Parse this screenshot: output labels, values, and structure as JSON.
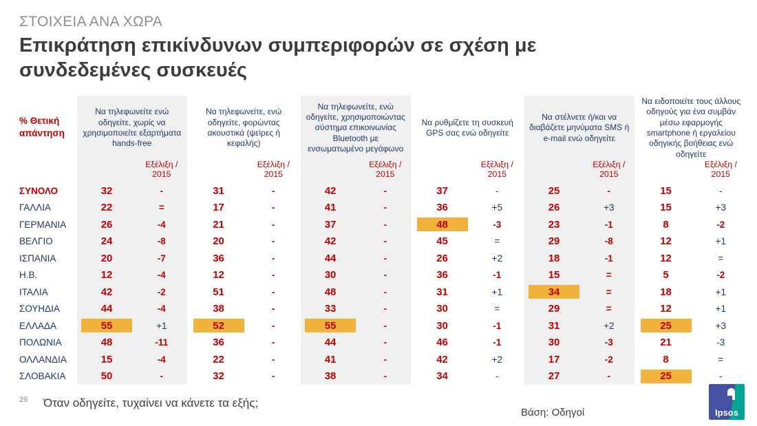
{
  "page": {
    "kicker": "ΣΤΟΙΧΕΙΑ ΑΝΑ ΧΩΡΑ",
    "title": "Επικράτηση επικίνδυνων συμπεριφορών σε σχέση με συνδεδεμένες συσκευές",
    "page_number": "29",
    "footnote": "Όταν οδηγείτε, τυχαίνει να κάνετε τα εξής;",
    "base_note": "Βάση: Οδηγοί",
    "logo_text": "Ipsos"
  },
  "colors": {
    "accent_red": "#C00000",
    "navy": "#1F3864",
    "highlight": "#F2B33C",
    "panel_gray": "#F0F0F0",
    "title_dark": "#3C3C3C",
    "kicker_gray": "#8E8E8E",
    "logo_blue": "#4352A2",
    "logo_teal": "#00A496"
  },
  "table": {
    "measure_label": "% Θετική απάντηση",
    "evolution_label": "Εξέλιξη / 2015",
    "columns": [
      {
        "label": "Να τηλεφωνείτε ενώ οδηγείτε, χωρίς να χρησιμοποιείτε εξαρτήματα hands-free",
        "shaded": true
      },
      {
        "label": "Να τηλεφωνείτε, ενώ οδηγείτε, φορώντας ακουστικά (ψείρες ή κεφαλής)",
        "shaded": false
      },
      {
        "label": "Να τηλεφωνείτε, ενώ οδηγείτε, χρησιμοποιώντας σύστημα επικοινωνίας Bluetooth με ενσωματωμένο μεγάφωνο",
        "shaded": true
      },
      {
        "label": "Να ρυθμίζετε τη συσκευή GPS σας ενώ οδηγείτε",
        "shaded": false
      },
      {
        "label": "Να στέλνετε ή/και να διαβάζετε μηνύματα SMS ή e-mail ενώ οδηγείτε",
        "shaded": true
      },
      {
        "label": "Να ειδοποιείτε τους άλλους οδηγούς για ένα συμβάν μέσω εφαρμογής smartphone ή εργαλείου οδηγικής βοήθειας ενώ οδηγείτε",
        "shaded": false
      }
    ],
    "rows": [
      {
        "label": "ΣΥΝΟΛΟ",
        "is_total": true,
        "cells": [
          {
            "v": "32",
            "e": "-",
            "ec": "r",
            "hl": false
          },
          {
            "v": "31",
            "e": "-",
            "ec": "r",
            "hl": false
          },
          {
            "v": "42",
            "e": "-",
            "ec": "r",
            "hl": false
          },
          {
            "v": "37",
            "e": "-",
            "ec": "n",
            "hl": false
          },
          {
            "v": "25",
            "e": "-",
            "ec": "r",
            "hl": false
          },
          {
            "v": "15",
            "e": "-",
            "ec": "n",
            "hl": false
          }
        ]
      },
      {
        "label": "ΓΑΛΛΙΑ",
        "is_total": false,
        "cells": [
          {
            "v": "22",
            "e": "=",
            "ec": "r",
            "hl": false
          },
          {
            "v": "17",
            "e": "-",
            "ec": "r",
            "hl": false
          },
          {
            "v": "41",
            "e": "-",
            "ec": "r",
            "hl": false
          },
          {
            "v": "36",
            "e": "+5",
            "ec": "n",
            "hl": false
          },
          {
            "v": "26",
            "e": "+3",
            "ec": "n",
            "hl": false
          },
          {
            "v": "15",
            "e": "+3",
            "ec": "n",
            "hl": false
          }
        ]
      },
      {
        "label": "ΓΕΡΜΑΝΙΑ",
        "is_total": false,
        "cells": [
          {
            "v": "26",
            "e": "-4",
            "ec": "r",
            "hl": false
          },
          {
            "v": "21",
            "e": "-",
            "ec": "r",
            "hl": false
          },
          {
            "v": "37",
            "e": "-",
            "ec": "r",
            "hl": false
          },
          {
            "v": "48",
            "e": "-3",
            "ec": "r",
            "hl": true
          },
          {
            "v": "23",
            "e": "-1",
            "ec": "r",
            "hl": false
          },
          {
            "v": "8",
            "e": "-2",
            "ec": "r",
            "hl": false
          }
        ]
      },
      {
        "label": "ΒΕΛΓΙΟ",
        "is_total": false,
        "cells": [
          {
            "v": "24",
            "e": "-8",
            "ec": "r",
            "hl": false
          },
          {
            "v": "20",
            "e": "-",
            "ec": "r",
            "hl": false
          },
          {
            "v": "42",
            "e": "-",
            "ec": "r",
            "hl": false
          },
          {
            "v": "45",
            "e": "=",
            "ec": "n",
            "hl": false
          },
          {
            "v": "29",
            "e": "-8",
            "ec": "r",
            "hl": false
          },
          {
            "v": "12",
            "e": "+1",
            "ec": "n",
            "hl": false
          }
        ]
      },
      {
        "label": "ΙΣΠΑΝΙΑ",
        "is_total": false,
        "cells": [
          {
            "v": "20",
            "e": "-7",
            "ec": "r",
            "hl": false
          },
          {
            "v": "36",
            "e": "-",
            "ec": "r",
            "hl": false
          },
          {
            "v": "44",
            "e": "-",
            "ec": "r",
            "hl": false
          },
          {
            "v": "26",
            "e": "+2",
            "ec": "n",
            "hl": false
          },
          {
            "v": "18",
            "e": "-1",
            "ec": "r",
            "hl": false
          },
          {
            "v": "12",
            "e": "=",
            "ec": "n",
            "hl": false
          }
        ]
      },
      {
        "label": "Η.Β.",
        "is_total": false,
        "cells": [
          {
            "v": "12",
            "e": "-4",
            "ec": "r",
            "hl": false
          },
          {
            "v": "12",
            "e": "-",
            "ec": "r",
            "hl": false
          },
          {
            "v": "30",
            "e": "-",
            "ec": "r",
            "hl": false
          },
          {
            "v": "36",
            "e": "-1",
            "ec": "r",
            "hl": false
          },
          {
            "v": "15",
            "e": "=",
            "ec": "r",
            "hl": false
          },
          {
            "v": "5",
            "e": "-2",
            "ec": "r",
            "hl": false
          }
        ]
      },
      {
        "label": "ΙΤΑΛΙΑ",
        "is_total": false,
        "cells": [
          {
            "v": "42",
            "e": "-2",
            "ec": "r",
            "hl": false
          },
          {
            "v": "51",
            "e": "-",
            "ec": "r",
            "hl": false
          },
          {
            "v": "48",
            "e": "-",
            "ec": "r",
            "hl": false
          },
          {
            "v": "31",
            "e": "+1",
            "ec": "n",
            "hl": false
          },
          {
            "v": "34",
            "e": "=",
            "ec": "r",
            "hl": true
          },
          {
            "v": "18",
            "e": "+1",
            "ec": "n",
            "hl": false
          }
        ]
      },
      {
        "label": "ΣΟΥΗΔΙΑ",
        "is_total": false,
        "cells": [
          {
            "v": "44",
            "e": "-4",
            "ec": "r",
            "hl": false
          },
          {
            "v": "38",
            "e": "-",
            "ec": "r",
            "hl": false
          },
          {
            "v": "33",
            "e": "-",
            "ec": "r",
            "hl": false
          },
          {
            "v": "30",
            "e": "=",
            "ec": "n",
            "hl": false
          },
          {
            "v": "29",
            "e": "=",
            "ec": "r",
            "hl": false
          },
          {
            "v": "12",
            "e": "+1",
            "ec": "n",
            "hl": false
          }
        ]
      },
      {
        "label": "ΕΛΛΑΔΑ",
        "is_total": false,
        "cells": [
          {
            "v": "55",
            "e": "+1",
            "ec": "n",
            "hl": true
          },
          {
            "v": "52",
            "e": "-",
            "ec": "r",
            "hl": true
          },
          {
            "v": "55",
            "e": "-",
            "ec": "r",
            "hl": true
          },
          {
            "v": "30",
            "e": "-1",
            "ec": "r",
            "hl": false
          },
          {
            "v": "31",
            "e": "+2",
            "ec": "n",
            "hl": false
          },
          {
            "v": "25",
            "e": "+3",
            "ec": "n",
            "hl": true
          }
        ]
      },
      {
        "label": "ΠΟΛΩΝΙΑ",
        "is_total": false,
        "cells": [
          {
            "v": "48",
            "e": "-11",
            "ec": "r",
            "hl": false
          },
          {
            "v": "36",
            "e": "-",
            "ec": "r",
            "hl": false
          },
          {
            "v": "44",
            "e": "-",
            "ec": "r",
            "hl": false
          },
          {
            "v": "46",
            "e": "-1",
            "ec": "r",
            "hl": false
          },
          {
            "v": "30",
            "e": "-3",
            "ec": "r",
            "hl": false
          },
          {
            "v": "21",
            "e": "-3",
            "ec": "n",
            "hl": false
          }
        ]
      },
      {
        "label": "ΟΛΛΑΝΔΙΑ",
        "is_total": false,
        "cells": [
          {
            "v": "15",
            "e": "-4",
            "ec": "r",
            "hl": false
          },
          {
            "v": "22",
            "e": "-",
            "ec": "r",
            "hl": false
          },
          {
            "v": "41",
            "e": "-",
            "ec": "r",
            "hl": false
          },
          {
            "v": "42",
            "e": "+2",
            "ec": "n",
            "hl": false
          },
          {
            "v": "17",
            "e": "-2",
            "ec": "r",
            "hl": false
          },
          {
            "v": "8",
            "e": "=",
            "ec": "n",
            "hl": false
          }
        ]
      },
      {
        "label": "ΣΛΟΒΑΚΙΑ",
        "is_total": false,
        "cells": [
          {
            "v": "50",
            "e": "-",
            "ec": "r",
            "hl": false
          },
          {
            "v": "32",
            "e": "-",
            "ec": "r",
            "hl": false
          },
          {
            "v": "38",
            "e": "-",
            "ec": "r",
            "hl": false
          },
          {
            "v": "34",
            "e": "-",
            "ec": "n",
            "hl": false
          },
          {
            "v": "27",
            "e": "-",
            "ec": "r",
            "hl": false
          },
          {
            "v": "25",
            "e": "-",
            "ec": "n",
            "hl": true
          }
        ]
      }
    ]
  },
  "chart_data": {
    "type": "table",
    "title": "Επικράτηση επικίνδυνων συμπεριφορών σε σχέση με συνδεδεμένες συσκευές",
    "measure": "% Θετική απάντηση",
    "categories": [
      "ΣΥΝΟΛΟ",
      "ΓΑΛΛΙΑ",
      "ΓΕΡΜΑΝΙΑ",
      "ΒΕΛΓΙΟ",
      "ΙΣΠΑΝΙΑ",
      "Η.Β.",
      "ΙΤΑΛΙΑ",
      "ΣΟΥΗΔΙΑ",
      "ΕΛΛΑΔΑ",
      "ΠΟΛΩΝΙΑ",
      "ΟΛΛΑΝΔΙΑ",
      "ΣΛΟΒΑΚΙΑ"
    ],
    "series": [
      {
        "name": "Να τηλεφωνείτε ενώ οδηγείτε, χωρίς να χρησιμοποιείτε εξαρτήματα hands-free",
        "values": [
          32,
          22,
          26,
          24,
          20,
          12,
          42,
          44,
          55,
          48,
          15,
          50
        ],
        "evolution_vs_2015": [
          "-",
          "=",
          "-4",
          "-8",
          "-7",
          "-4",
          "-2",
          "-4",
          "+1",
          "-11",
          "-4",
          "-"
        ]
      },
      {
        "name": "Να τηλεφωνείτε, ενώ οδηγείτε, φορώντας ακουστικά (ψείρες ή κεφαλής)",
        "values": [
          31,
          17,
          21,
          20,
          36,
          12,
          51,
          38,
          52,
          36,
          22,
          32
        ],
        "evolution_vs_2015": [
          "-",
          "-",
          "-",
          "-",
          "-",
          "-",
          "-",
          "-",
          "-",
          "-",
          "-",
          "-"
        ]
      },
      {
        "name": "Να τηλεφωνείτε, ενώ οδηγείτε, χρησιμοποιώντας σύστημα επικοινωνίας Bluetooth με ενσωματωμένο μεγάφωνο",
        "values": [
          42,
          41,
          37,
          42,
          44,
          30,
          48,
          33,
          55,
          44,
          41,
          38
        ],
        "evolution_vs_2015": [
          "-",
          "-",
          "-",
          "-",
          "-",
          "-",
          "-",
          "-",
          "-",
          "-",
          "-",
          "-"
        ]
      },
      {
        "name": "Να ρυθμίζετε τη συσκευή GPS σας ενώ οδηγείτε",
        "values": [
          37,
          36,
          48,
          45,
          26,
          36,
          31,
          30,
          30,
          46,
          42,
          34
        ],
        "evolution_vs_2015": [
          "-",
          "+5",
          "-3",
          "=",
          "+2",
          "-1",
          "+1",
          "=",
          "-1",
          "-1",
          "+2",
          "-"
        ]
      },
      {
        "name": "Να στέλνετε ή/και να διαβάζετε μηνύματα SMS ή e-mail ενώ οδηγείτε",
        "values": [
          25,
          26,
          23,
          29,
          18,
          15,
          34,
          29,
          31,
          30,
          17,
          27
        ],
        "evolution_vs_2015": [
          "-",
          "+3",
          "-1",
          "-8",
          "-1",
          "=",
          "=",
          "=",
          "+2",
          "-3",
          "-2",
          "-"
        ]
      },
      {
        "name": "Να ειδοποιείτε τους άλλους οδηγούς για ένα συμβάν μέσω εφαρμογής smartphone ή εργαλείου οδηγικής βοήθειας ενώ οδηγείτε",
        "values": [
          15,
          15,
          8,
          12,
          12,
          5,
          18,
          12,
          25,
          21,
          8,
          25
        ],
        "evolution_vs_2015": [
          "-",
          "+3",
          "-2",
          "+1",
          "=",
          "-2",
          "+1",
          "+1",
          "+3",
          "-3",
          "=",
          "-"
        ]
      }
    ]
  }
}
